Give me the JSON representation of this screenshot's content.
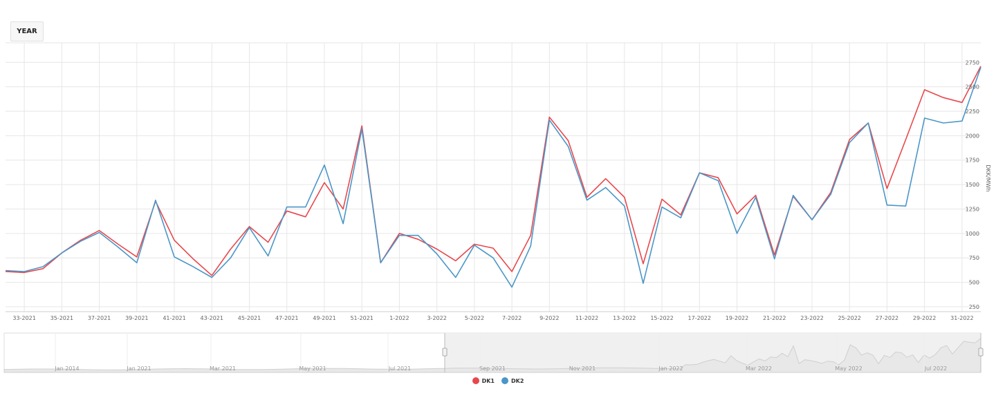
{
  "toolbar": {
    "range_label": "YEAR"
  },
  "colors": {
    "dk1": "#e8474c",
    "dk2": "#4a96c8",
    "grid": "#e6e6e6",
    "navigator_fill": "#e8e8e8",
    "navigator_selected": "#f0f0f0"
  },
  "chart_data": {
    "type": "line",
    "x_tick_labels": [
      "33-2021",
      "35-2021",
      "37-2021",
      "39-2021",
      "41-2021",
      "43-2021",
      "45-2021",
      "47-2021",
      "49-2021",
      "51-2021",
      "1-2022",
      "3-2022",
      "5-2022",
      "7-2022",
      "9-2022",
      "11-2022",
      "13-2022",
      "15-2022",
      "17-2022",
      "19-2022",
      "21-2022",
      "23-2022",
      "25-2022",
      "27-2022",
      "29-2022",
      "31-2022"
    ],
    "ylabel": "DKK/MWh",
    "ylim": [
      200,
      2950
    ],
    "yticks": [
      250,
      500,
      750,
      1000,
      1250,
      1500,
      1750,
      2000,
      2250,
      2500,
      2750
    ],
    "grid": true,
    "legend_position": "bottom-center",
    "series": [
      {
        "name": "DK1",
        "values": [
          610,
          600,
          640,
          800,
          930,
          1030,
          890,
          760,
          1330,
          930,
          740,
          570,
          840,
          1070,
          910,
          1230,
          1170,
          1520,
          1250,
          2100,
          700,
          1000,
          940,
          840,
          720,
          890,
          850,
          610,
          980,
          2190,
          1950,
          1370,
          1560,
          1370,
          690,
          1350,
          1190,
          1620,
          1570,
          1200,
          1390,
          780,
          1380,
          1140,
          1420,
          1960,
          2130,
          1460,
          1960,
          2470,
          2390,
          2340,
          2710
        ]
      },
      {
        "name": "DK2",
        "values": [
          620,
          610,
          660,
          800,
          920,
          1010,
          860,
          700,
          1340,
          760,
          660,
          550,
          750,
          1060,
          770,
          1270,
          1270,
          1700,
          1100,
          2070,
          700,
          980,
          980,
          790,
          550,
          880,
          750,
          450,
          870,
          2160,
          1890,
          1340,
          1470,
          1280,
          490,
          1270,
          1160,
          1620,
          1540,
          1000,
          1370,
          740,
          1390,
          1140,
          1400,
          1930,
          2130,
          1290,
          1280,
          2180,
          2130,
          2150,
          2700
        ]
      }
    ],
    "navigator": {
      "x_tick_labels": [
        "Jan 2014",
        "Jan 2021",
        "Mar 2021",
        "May 2021",
        "Jul 2021",
        "Sep 2021",
        "Nov 2021",
        "Jan 2022",
        "Mar 2022",
        "May 2022",
        "Jul 2022"
      ]
    }
  }
}
